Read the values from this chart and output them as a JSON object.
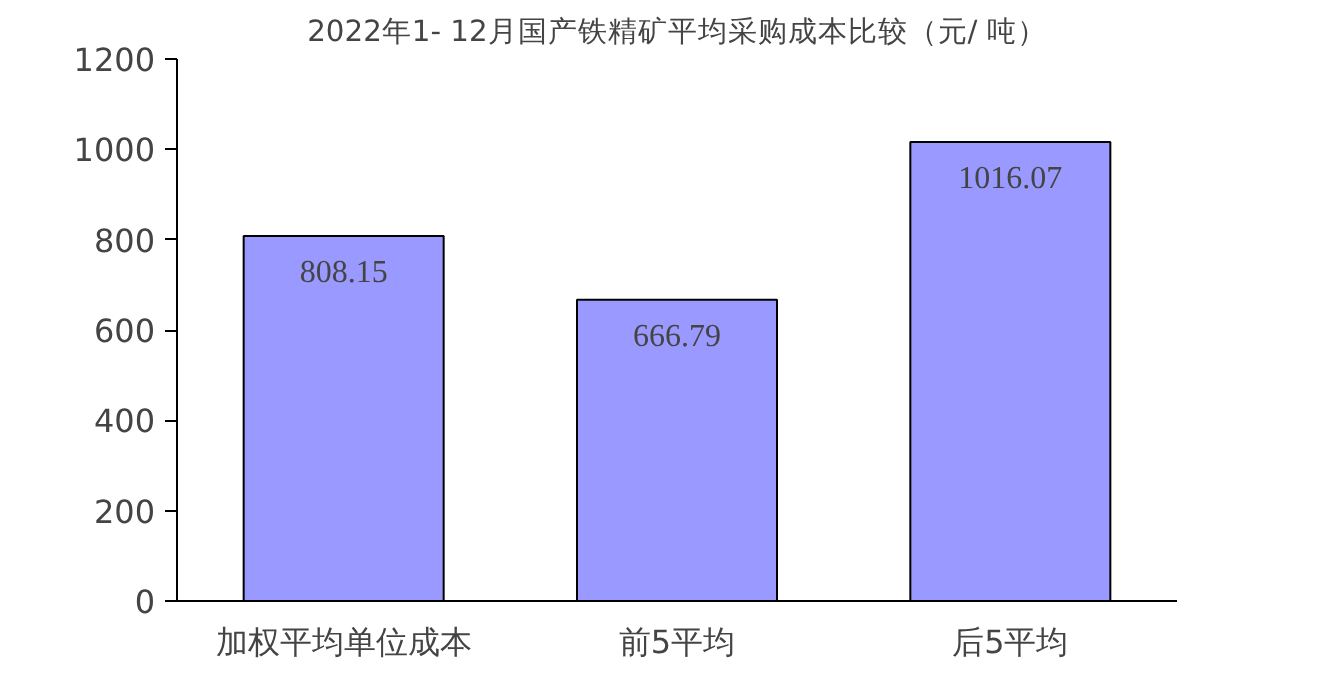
{
  "chart_data": {
    "type": "bar",
    "title": "2022年1- 12月国产铁精矿平均采购成本比较（元/ 吨）",
    "categories": [
      "加权平均单位成本",
      "前5平均",
      "后5平均"
    ],
    "values": [
      808.15,
      666.79,
      1016.07
    ],
    "color": "#9999ff",
    "ylim": [
      0,
      1200
    ],
    "yticks": [
      0,
      200,
      400,
      600,
      800,
      1000,
      1200
    ],
    "grid": false,
    "data_labels": true
  }
}
